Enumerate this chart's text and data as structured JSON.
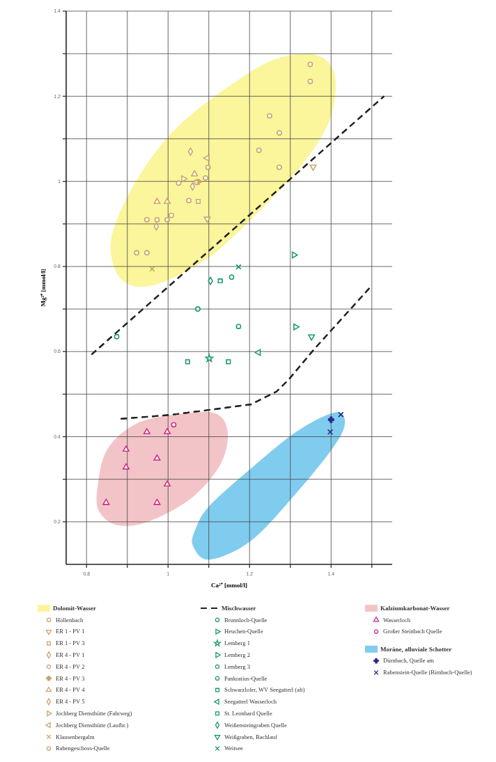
{
  "chart_data": {
    "type": "scatter",
    "xlabel": "Ca²⁺ [mmol/l]",
    "ylabel": "Mg²⁺ [mmol/l]",
    "xlim": [
      0.75,
      1.55
    ],
    "ylim": [
      0.1,
      1.4
    ],
    "xticks": [
      0.8,
      {
        "value": 0.9,
        "label": null
      },
      1,
      {
        "value": 1.1,
        "label": null
      },
      1.2,
      {
        "value": 1.3,
        "label": null
      },
      1.4,
      {
        "value": 1.5,
        "label": null
      }
    ],
    "yticks": [
      0.2,
      {
        "value": 0.3,
        "label": null
      },
      0.4,
      {
        "value": 0.5,
        "label": null
      },
      0.6,
      {
        "value": 0.7,
        "label": null
      },
      0.8,
      {
        "value": 0.9,
        "label": null
      },
      1,
      {
        "value": 1.1,
        "label": null
      },
      1.2,
      {
        "value": 1.3,
        "label": null
      },
      1.4
    ],
    "grid": true,
    "legend": "bottom",
    "series": [
      {
        "name": "Dolomit-Wasser",
        "type": "area",
        "color": "#fbf59b",
        "x": [
          1.363,
          1.409,
          1.397,
          1.329,
          1.203,
          1.089,
          0.964,
          0.89,
          0.859,
          0.879,
          0.947,
          1.032,
          1.146,
          1.26
        ],
        "values": [
          1.297,
          1.249,
          1.146,
          1.039,
          0.91,
          0.814,
          0.756,
          0.766,
          0.836,
          0.921,
          1.039,
          1.136,
          1.221,
          1.286
        ]
      },
      {
        "name": "Höllenbach",
        "marker": "circle",
        "color": "#c9a46a",
        "x": [
          1.349,
          1.349,
          1.249,
          1.273,
          1.223,
          1.273,
          1.098,
          1.051
        ],
        "values": [
          1.275,
          1.235,
          1.154,
          1.114,
          1.073,
          1.033,
          1.033,
          0.955
        ]
      },
      {
        "name": "ER 1 - PV 1",
        "marker": "triangle-down",
        "color": "#c9a46a",
        "x": [
          1.096,
          1.356
        ],
        "values": [
          0.912,
          1.034
        ]
      },
      {
        "name": "ER 1 - PV 3",
        "marker": "square",
        "color": "#c9a46a",
        "x": [
          1.074
        ],
        "values": [
          0.953
        ]
      },
      {
        "name": "ER 4 - PV 1",
        "marker": "diamond",
        "color": "#c9a46a",
        "x": [
          0.971,
          1.06
        ],
        "values": [
          0.894,
          0.988
        ]
      },
      {
        "name": "ER 4 - PV 2",
        "marker": "circle",
        "color": "#c9a46a",
        "x": [
          1.026,
          1.008
        ],
        "values": [
          0.996,
          0.92
        ]
      },
      {
        "name": "ER 4 - PV 3",
        "marker": "plus",
        "color": "#c9a46a",
        "x": [
          1.074
        ],
        "values": [
          0.999
        ]
      },
      {
        "name": "ER 4 - PV 4",
        "marker": "triangle",
        "color": "#c9a46a",
        "x": [
          1.065,
          0.973,
          0.998
        ],
        "values": [
          1.017,
          0.952,
          0.952
        ]
      },
      {
        "name": "ER 4 - PV 5",
        "marker": "diamond",
        "color": "#c9a46a",
        "x": [
          1.055
        ],
        "values": [
          1.07
        ]
      },
      {
        "name": "Jochberg Diensthütte (Fahrweg)",
        "marker": "triangle-right",
        "color": "#c9a46a",
        "x": [
          1.038
        ],
        "values": [
          1.006
        ]
      },
      {
        "name": "Jochberg Diensthütte (Laufbr.)",
        "marker": "triangle-left",
        "color": "#c9a46a",
        "x": [
          1.096
        ],
        "values": [
          1.055
        ]
      },
      {
        "name": "Klausenbergalm",
        "marker": "cross",
        "color": "#c9a46a",
        "x": [
          0.961
        ],
        "values": [
          0.794
        ]
      },
      {
        "name": "Rabengeschoss-Quelle",
        "marker": "circle",
        "color": "#c9a46a",
        "x": [
          0.948,
          0.973,
          0.998,
          0.923,
          0.948,
          1.069,
          1.092
        ],
        "values": [
          0.91,
          0.91,
          0.91,
          0.832,
          0.832,
          0.998,
          1.008
        ]
      },
      {
        "name": "Mischwasser",
        "type": "line",
        "line_style": "dashed",
        "color": "#222222",
        "x": [
          0.812,
          1.53,
          null,
          0.884,
          1.004,
          1.101,
          1.204,
          1.266,
          1.295,
          1.357,
          1.494
        ],
        "values": [
          0.593,
          1.2,
          null,
          0.442,
          0.451,
          0.463,
          0.476,
          0.506,
          0.533,
          0.604,
          0.749
        ]
      },
      {
        "name": "Brunnloch-Quelle",
        "marker": "circle",
        "color": "#1b9a6c",
        "x": [
          0.874
        ],
        "values": [
          0.635
        ]
      },
      {
        "name": "Heuchen-Quelle",
        "marker": "triangle-right",
        "color": "#1b9a6c",
        "x": [
          1.309
        ],
        "values": [
          0.827
        ]
      },
      {
        "name": "Lemberg 1",
        "marker": "star",
        "color": "#1b9a6c",
        "x": [
          1.101
        ],
        "values": [
          0.584
        ]
      },
      {
        "name": "Lemberg 2",
        "marker": "triangle-right",
        "color": "#1b9a6c",
        "x": [
          1.313
        ],
        "values": [
          0.658
        ]
      },
      {
        "name": "Lemberg 3",
        "marker": "circle",
        "color": "#1b9a6c",
        "x": [
          1.156
        ],
        "values": [
          0.775
        ]
      },
      {
        "name": "Pankratius-Quelle",
        "marker": "circle",
        "color": "#1b9a6c",
        "x": [
          1.073,
          1.173
        ],
        "values": [
          0.7,
          0.659
        ]
      },
      {
        "name": "Schwarzlofer, WV Seegatterl (alt)",
        "marker": "square",
        "color": "#1b9a6c",
        "x": [
          1.048,
          1.148
        ],
        "values": [
          0.576,
          0.576
        ]
      },
      {
        "name": "Seegatterl Wasserloch",
        "marker": "triangle-left",
        "color": "#1b9a6c",
        "x": [
          1.222
        ],
        "values": [
          0.598
        ]
      },
      {
        "name": "St. Leonhard Quelle",
        "marker": "square",
        "color": "#1b9a6c",
        "x": [
          1.128
        ],
        "values": [
          0.766
        ]
      },
      {
        "name": "Weißensteingraben Quelle",
        "marker": "diamond",
        "color": "#1b9a6c",
        "x": [
          1.104
        ],
        "values": [
          0.766
        ]
      },
      {
        "name": "Weißgraben, Bachlauf",
        "marker": "triangle-down",
        "color": "#1b9a6c",
        "x": [
          1.352
        ],
        "values": [
          0.635
        ]
      },
      {
        "name": "Weitsee",
        "marker": "cross",
        "color": "#1b9a6c",
        "x": [
          1.173
        ],
        "values": [
          0.799
        ]
      },
      {
        "name": "Kalziumkarbonat-Wasser",
        "type": "area",
        "color": "#f3c4c7",
        "x": [
          0.827,
          0.85,
          0.919,
          1.01,
          1.112,
          1.146,
          1.129,
          1.055,
          0.947,
          0.873,
          0.83
        ],
        "values": [
          0.281,
          0.369,
          0.429,
          0.451,
          0.456,
          0.413,
          0.336,
          0.254,
          0.199,
          0.193,
          0.226
        ]
      },
      {
        "name": "Wasserloch",
        "marker": "triangle",
        "color": "#cc2b8c",
        "x": [
          0.848,
          0.897,
          0.897,
          0.948,
          0.973,
          0.998,
          0.998,
          0.973
        ],
        "values": [
          0.245,
          0.37,
          0.328,
          0.411,
          0.349,
          0.411,
          0.288,
          0.245
        ]
      },
      {
        "name": "Großer Steinbach Quelle",
        "marker": "circle",
        "color": "#cc2b8c",
        "x": [
          1.014
        ],
        "values": [
          0.428
        ]
      },
      {
        "name": "Moräne, alluviale Schotter",
        "type": "area",
        "color": "#80ccef",
        "x": [
          1.061,
          1.101,
          1.203,
          1.317,
          1.409,
          1.434,
          1.409,
          1.317,
          1.203,
          1.101,
          1.067
        ],
        "values": [
          0.144,
          0.111,
          0.155,
          0.27,
          0.38,
          0.435,
          0.457,
          0.413,
          0.325,
          0.237,
          0.182
        ]
      },
      {
        "name": "Dürnbach, Quelle am",
        "marker": "plus",
        "color": "#2b2b86",
        "x": [
          1.4
        ],
        "values": [
          0.44
        ]
      },
      {
        "name": "Rabenstein-Quelle (Birnbach-Quelle)",
        "marker": "cross",
        "color": "#2b2b86",
        "x": [
          1.398,
          1.424
        ],
        "values": [
          0.411,
          0.452
        ]
      }
    ]
  }
}
